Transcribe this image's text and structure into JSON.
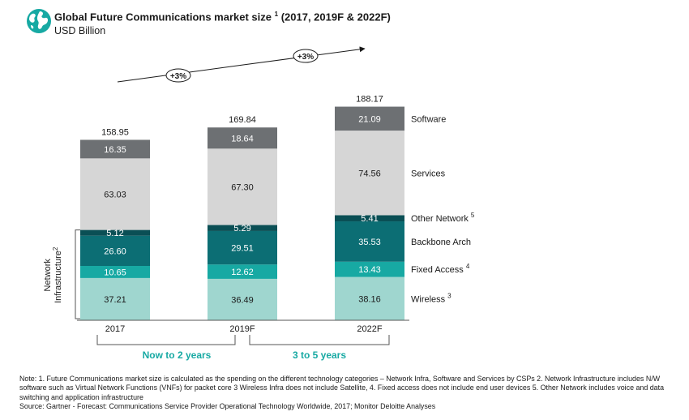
{
  "title": "Global Future Communications market size",
  "title_sup": "1",
  "title_suffix": "(2017, 2019F & 2022F)",
  "subtitle": "USD Billion",
  "growth_labels": [
    "+3%",
    "+3%"
  ],
  "network_group_label_line1": "Network",
  "network_group_label_line2": "Infrastructure",
  "network_group_label_sup": "2",
  "period_labels": [
    "Now to 2 years",
    "3 to 5 years"
  ],
  "note_lines": [
    "Note:  1. Future Communications market size is calculated as the spending on the different technology categories – Network Infra, Software and Services by CSPs 2. Network Infrastructure includes N/W software such as Virtual Network Functions (VNFs) for packet core  3 Wireless Infra does not include Satellite, 4. Fixed access does not include end user devices 5. Other Network includes voice and data switching and application infrastructure",
    "Source: Gartner - Forecast: Communications Service Provider Operational Technology Worldwide, 2017; Monitor Deloitte Analyses"
  ],
  "colors": {
    "wireless": "#9fd6cf",
    "fixed_access": "#17a9a3",
    "backbone": "#0c6e74",
    "other_network": "#0a4f55",
    "services": "#d6d6d6",
    "software": "#6d7073",
    "accent_text": "#17a9a3",
    "icon": "#17a9a3"
  },
  "chart_data": {
    "type": "bar",
    "stacked": true,
    "categories": [
      "2017",
      "2019F",
      "2022F"
    ],
    "totals": [
      "158.95",
      "169.84",
      "188.17"
    ],
    "series": [
      {
        "name": "Wireless",
        "sup": "3",
        "values": [
          37.21,
          36.49,
          38.16
        ],
        "labels": [
          "37.21",
          "36.49",
          "38.16"
        ],
        "color_key": "wireless",
        "label_color": "#1a1a1a"
      },
      {
        "name": "Fixed Access",
        "sup": "4",
        "values": [
          10.65,
          12.62,
          13.43
        ],
        "labels": [
          "10.65",
          "12.62",
          "13.43"
        ],
        "color_key": "fixed_access",
        "label_color": "#ffffff"
      },
      {
        "name": "Backbone Arch",
        "sup": "",
        "values": [
          26.6,
          29.51,
          35.53
        ],
        "labels": [
          "26.60",
          "29.51",
          "35.53"
        ],
        "color_key": "backbone",
        "label_color": "#ffffff"
      },
      {
        "name": "Other Network",
        "sup": "5",
        "values": [
          5.12,
          5.29,
          5.41
        ],
        "labels": [
          "5.12",
          "5.29",
          "5.41"
        ],
        "color_key": "other_network",
        "label_color": "#ffffff"
      },
      {
        "name": "Services",
        "sup": "",
        "values": [
          63.03,
          67.3,
          74.56
        ],
        "labels": [
          "63.03",
          "67.30",
          "74.56"
        ],
        "color_key": "services",
        "label_color": "#1a1a1a"
      },
      {
        "name": "Software",
        "sup": "",
        "values": [
          16.35,
          18.64,
          21.09
        ],
        "labels": [
          "16.35",
          "18.64",
          "21.09"
        ],
        "color_key": "software",
        "label_color": "#ffffff"
      }
    ],
    "legend": "right of last bar",
    "grid": false
  }
}
